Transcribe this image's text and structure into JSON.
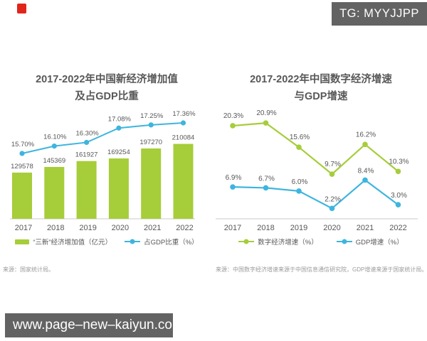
{
  "overlay": {
    "tg_label": "TG: MYYJJPP",
    "watermark_text": "www.page–new–kaiyun.com"
  },
  "colors": {
    "green": "#a6cd3a",
    "blue": "#3eb5de",
    "text": "#595757",
    "source_text": "#9c9a9a",
    "axis": "#d4d4d4",
    "overlay_bg": "#636363",
    "red_icon": "#e1251b"
  },
  "chart_data": [
    {
      "type": "bar",
      "title": "2017-2022年中国新经济增加值及占GDP比重",
      "title_lines": [
        "2017-2022年中国新经济增加值",
        "及占GDP比重"
      ],
      "categories": [
        "2017",
        "2018",
        "2019",
        "2020",
        "2021",
        "2022"
      ],
      "series": [
        {
          "name": "“三新”经济增加值（亿元）",
          "type": "bar",
          "color_key": "green",
          "values": [
            129578,
            145369,
            161927,
            169254,
            197270,
            210084
          ],
          "labels": [
            "129578",
            "145369",
            "161927",
            "169254",
            "197270",
            "210084"
          ]
        },
        {
          "name": "占GDP比重（%）",
          "type": "line",
          "color_key": "blue",
          "values": [
            15.7,
            16.1,
            16.3,
            17.08,
            17.25,
            17.36
          ],
          "labels": [
            "15.70%",
            "16.10%",
            "16.30%",
            "17.08%",
            "17.25%",
            "17.36%"
          ]
        }
      ],
      "ylim": [
        0,
        300000
      ],
      "y2lim": [
        15,
        18
      ],
      "grid": false,
      "legend_position": "bottom",
      "source": "来源：国家统计局。"
    },
    {
      "type": "line",
      "title": "2017-2022年中国数字经济增速与GDP增速",
      "title_lines": [
        "2017-2022年中国数字经济增速",
        "与GDP增速"
      ],
      "categories": [
        "2017",
        "2018",
        "2019",
        "2020",
        "2021",
        "2022"
      ],
      "series": [
        {
          "name": "数字经济增速（%）",
          "color_key": "green",
          "values": [
            20.3,
            20.9,
            15.6,
            9.7,
            16.2,
            10.3
          ],
          "labels": [
            "20.3%",
            "20.9%",
            "15.6%",
            "9.7%",
            "16.2%",
            "10.3%"
          ]
        },
        {
          "name": "GDP增速（%）",
          "color_key": "blue",
          "values": [
            6.9,
            6.7,
            6.0,
            2.2,
            8.4,
            3.0
          ],
          "labels": [
            "6.9%",
            "6.7%",
            "6.0%",
            "2.2%",
            "8.4%",
            "3.0%"
          ]
        }
      ],
      "ylim": [
        0,
        24
      ],
      "grid": false,
      "legend_position": "bottom",
      "source": "来源：中国数字经济增速来源于中国信息通信研究院，GDP增速来源于国家统计局。"
    }
  ]
}
